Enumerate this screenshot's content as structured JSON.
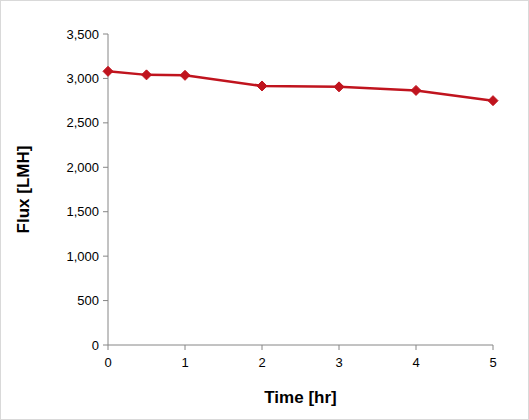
{
  "chart_data": {
    "type": "line",
    "x_label": "Time [hr]",
    "y_label": "Flux [LMH]",
    "x": [
      0,
      0.5,
      1,
      2,
      3,
      4,
      5
    ],
    "values": [
      3080,
      3040,
      3035,
      2915,
      2905,
      2865,
      2750
    ],
    "color": "#c0141e",
    "marker": "diamond",
    "line_style": "solid",
    "xlim": [
      0,
      5
    ],
    "xticks": [
      0,
      1,
      2,
      3,
      4,
      5
    ],
    "ylim": [
      0,
      3500
    ],
    "yticks": [
      0,
      500,
      {
        "value": 1000,
        "label": "1,000"
      },
      {
        "value": 1500,
        "label": "1,500"
      },
      {
        "value": 2000,
        "label": "2,000"
      },
      {
        "value": 2500,
        "label": "2,500"
      },
      {
        "value": 3000,
        "label": "3,000"
      },
      {
        "value": 3500,
        "label": "3,500"
      }
    ],
    "grid": false
  }
}
